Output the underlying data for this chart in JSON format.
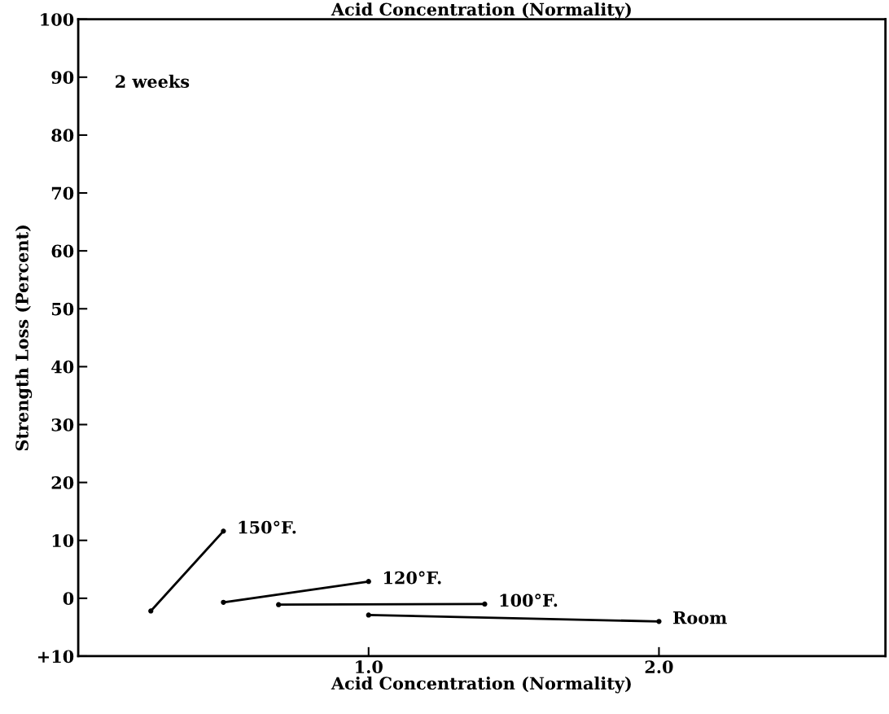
{
  "chart_data": {
    "type": "line",
    "title": "Acid Concentration (Normality)",
    "xlabel": "Acid Concentration (Normality)",
    "ylabel": "Strength Loss (Percent)",
    "annotations": [
      "2 weeks"
    ],
    "xlim": [
      0,
      2.78
    ],
    "xticks": [
      {
        "value": 1.0,
        "label": "1.0"
      },
      {
        "value": 2.0,
        "label": "2.0"
      }
    ],
    "ylim": [
      -10,
      100
    ],
    "yticks": [
      {
        "value": -10,
        "label": "+10"
      },
      0,
      10,
      20,
      30,
      40,
      50,
      60,
      70,
      80,
      90,
      100
    ],
    "grid": false,
    "legend": false,
    "marker": "circle",
    "line_style": "solid",
    "series": [
      {
        "name": "150°F.",
        "color": "#000000",
        "x": [
          0.25,
          0.5
        ],
        "values": [
          -2.2,
          11.6
        ]
      },
      {
        "name": "120°F.",
        "color": "#000000",
        "x": [
          0.5,
          1.0
        ],
        "values": [
          -0.7,
          2.9
        ]
      },
      {
        "name": "100°F.",
        "color": "#000000",
        "x": [
          0.69,
          1.4
        ],
        "values": [
          -1.1,
          -1.0
        ]
      },
      {
        "name": "Room",
        "color": "#000000",
        "x": [
          1.0,
          2.0
        ],
        "values": [
          -2.9,
          -4.0
        ]
      }
    ]
  }
}
